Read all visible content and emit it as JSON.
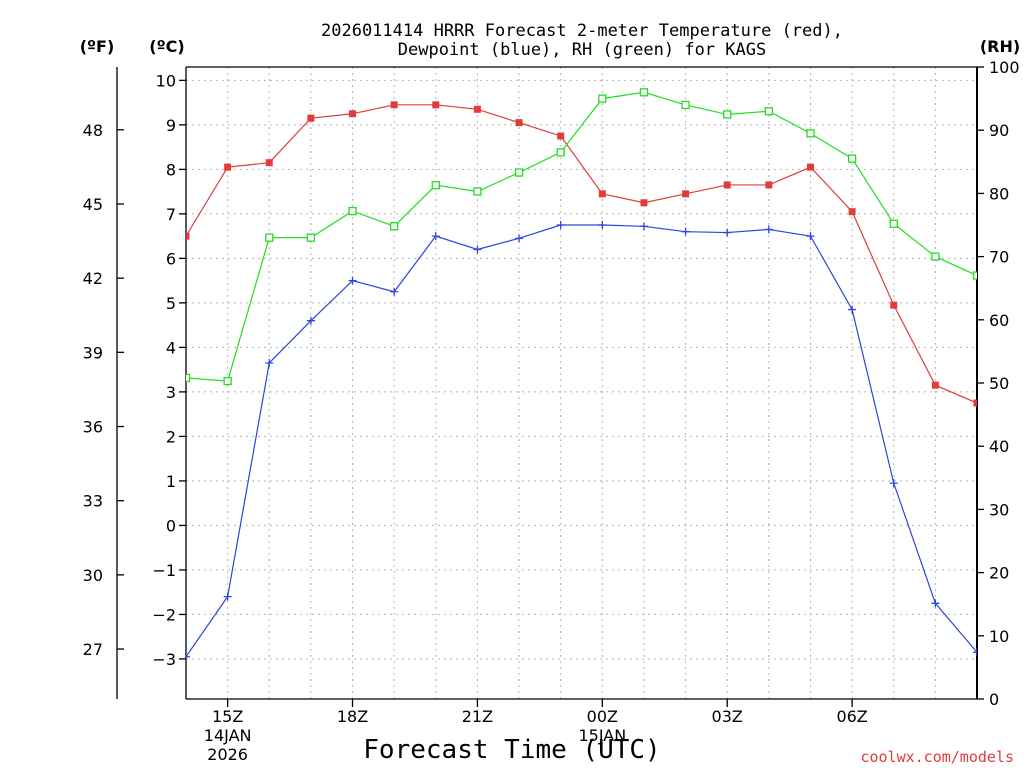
{
  "chart_data": {
    "type": "line",
    "title_line1": "2026011414 HRRR Forecast 2-meter Temperature (red),",
    "title_line2": "Dewpoint (blue), RH (green) for KAGS",
    "unit_f": "(ºF)",
    "unit_c": "(ºC)",
    "unit_rh": "(RH)",
    "xlabel": "Forecast Time (UTC)",
    "credit": "coolwx.com/models",
    "x_hours": [
      14,
      15,
      16,
      17,
      18,
      19,
      20,
      21,
      22,
      23,
      24,
      25,
      26,
      27,
      28,
      29,
      30,
      31,
      32,
      33
    ],
    "xlim": [
      14,
      33
    ],
    "x_ticks": [
      {
        "hour": 15,
        "label": "15Z",
        "date": "14JAN",
        "year": "2026"
      },
      {
        "hour": 18,
        "label": "18Z"
      },
      {
        "hour": 21,
        "label": "21Z"
      },
      {
        "hour": 24,
        "label": "00Z",
        "date": "15JAN"
      },
      {
        "hour": 27,
        "label": "03Z"
      },
      {
        "hour": 30,
        "label": "06Z"
      }
    ],
    "ylim_c": [
      -3.9,
      10.3
    ],
    "ylim_rh": [
      0,
      100
    ],
    "c_ticks": [
      -3,
      -2,
      -1,
      0,
      1,
      2,
      3,
      4,
      5,
      6,
      7,
      8,
      9,
      10
    ],
    "f_ticks": [
      27,
      30,
      33,
      36,
      39,
      42,
      45,
      48
    ],
    "rh_ticks": [
      0,
      10,
      20,
      30,
      40,
      50,
      60,
      70,
      80,
      90,
      100
    ],
    "series": [
      {
        "name": "Temperature",
        "unit": "C",
        "color": "#e03c3c",
        "marker": "filled-square",
        "values": [
          6.5,
          8.05,
          8.15,
          9.15,
          9.25,
          9.45,
          9.45,
          9.35,
          9.05,
          8.75,
          7.45,
          7.25,
          7.45,
          7.65,
          7.65,
          8.05,
          7.05,
          4.95,
          3.15,
          2.75
        ]
      },
      {
        "name": "Dewpoint",
        "unit": "C",
        "color": "#2a46e0",
        "marker": "plus",
        "values": [
          -2.95,
          -1.6,
          3.65,
          4.6,
          5.5,
          5.25,
          6.5,
          6.2,
          6.45,
          6.75,
          6.75,
          6.72,
          6.6,
          6.58,
          6.65,
          6.5,
          4.85,
          0.95,
          -1.75,
          -2.85
        ]
      },
      {
        "name": "RH",
        "unit": "%",
        "color": "#22dd22",
        "marker": "open-square",
        "values": [
          50.8,
          50.3,
          73.0,
          73.0,
          77.2,
          74.8,
          81.3,
          80.3,
          83.3,
          86.5,
          95.0,
          96.0,
          94.0,
          92.5,
          93.0,
          89.5,
          85.5,
          75.2,
          70.0,
          67.0
        ]
      }
    ]
  }
}
